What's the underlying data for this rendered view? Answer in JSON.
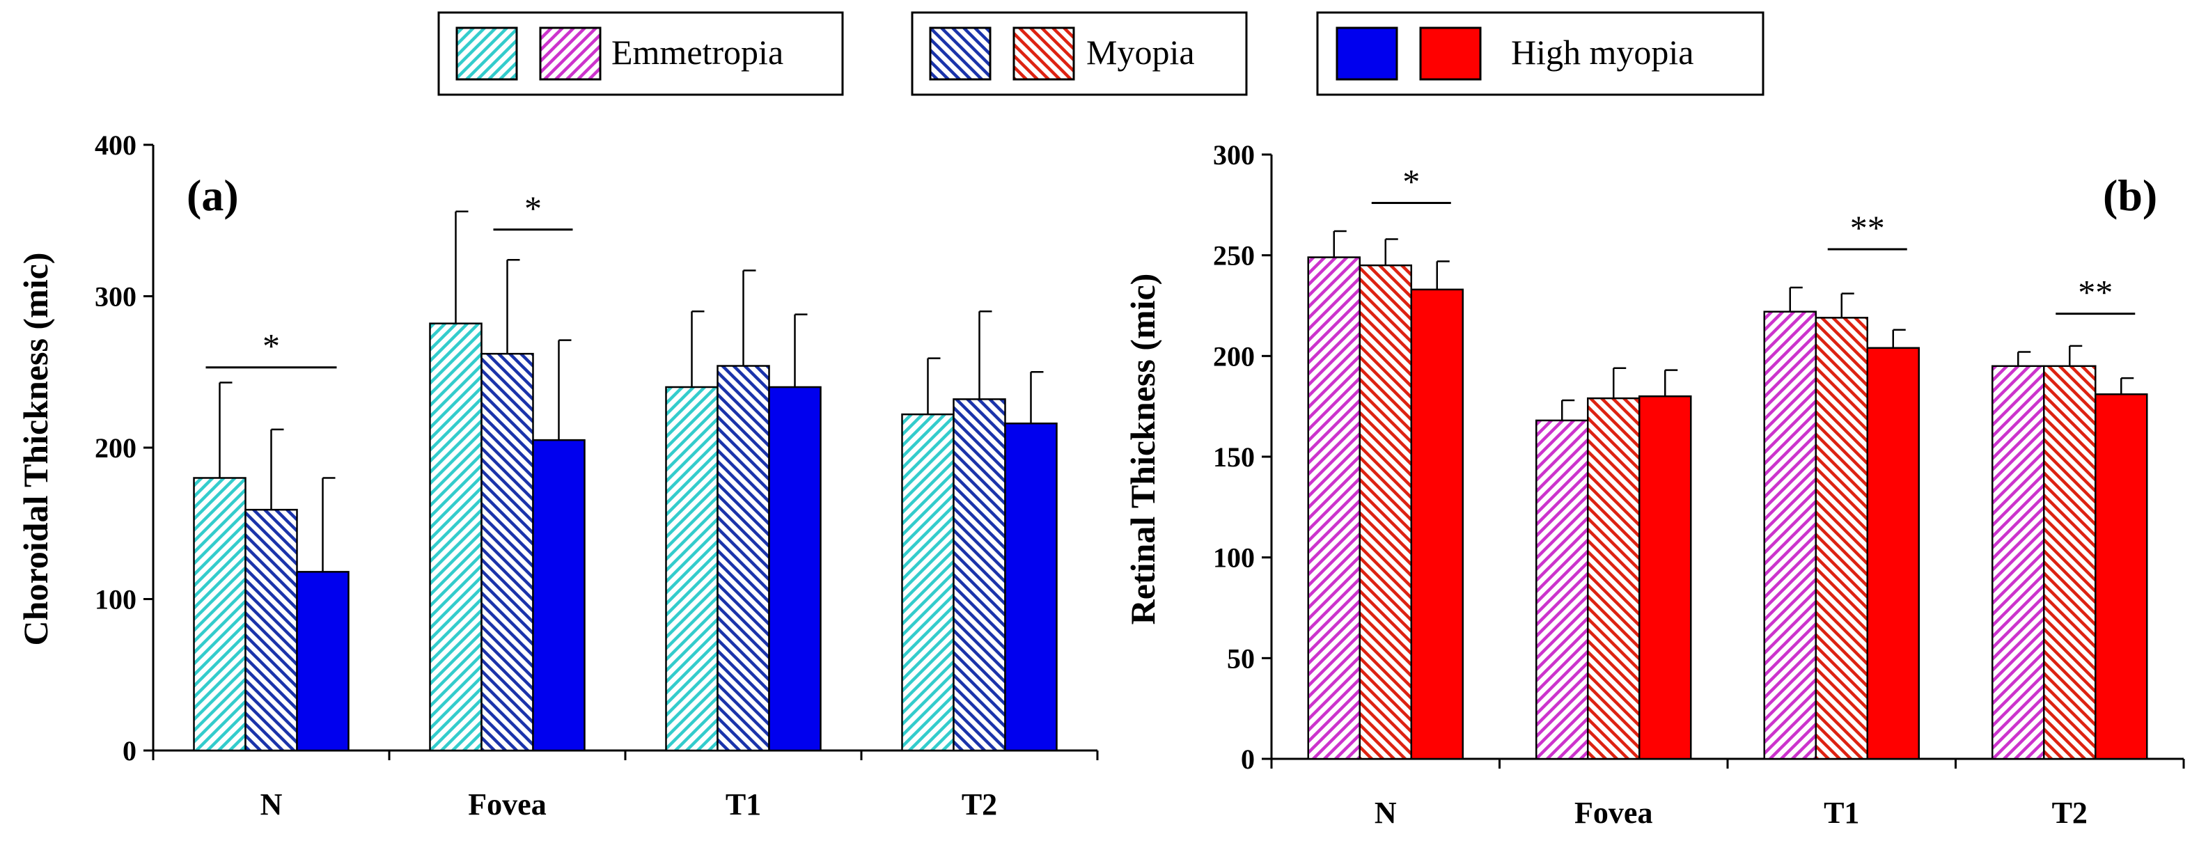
{
  "legend": {
    "groups": [
      {
        "label": "Emmetropia",
        "choroid_color": "#33cccc",
        "retina_color": "#cc33cc",
        "style": "hatch-forward"
      },
      {
        "label": "Myopia",
        "choroid_color": "#1a33aa",
        "retina_color": "#dd2211",
        "style": "hatch-back"
      },
      {
        "label": "High myopia",
        "choroid_color": "#0000ee",
        "retina_color": "#ff0000",
        "style": "solid"
      }
    ]
  },
  "chart_data": [
    {
      "type": "bar",
      "panel_label": "(a)",
      "ylabel": "Choroidal Thickness (mic)",
      "xlabel": "",
      "ylim": [
        0,
        400
      ],
      "yticks": [
        0,
        100,
        200,
        300,
        400
      ],
      "categories": [
        "N",
        "Fovea",
        "T1",
        "T2"
      ],
      "series": [
        {
          "name": "Emmetropia",
          "values": [
            180,
            282,
            240,
            222
          ],
          "error": [
            63,
            74,
            50,
            37
          ]
        },
        {
          "name": "Myopia",
          "values": [
            159,
            262,
            254,
            232
          ],
          "error": [
            53,
            62,
            63,
            58
          ]
        },
        {
          "name": "High myopia",
          "values": [
            118,
            205,
            240,
            216
          ],
          "error": [
            62,
            66,
            48,
            34
          ]
        }
      ],
      "significance": [
        {
          "category": "N",
          "between": [
            "Emmetropia",
            "High myopia"
          ],
          "mark": "*",
          "level": 253
        },
        {
          "category": "Fovea",
          "between": [
            "Myopia",
            "High myopia"
          ],
          "mark": "*",
          "level": 344
        }
      ]
    },
    {
      "type": "bar",
      "panel_label": "(b)",
      "ylabel": "Retinal Thickness (mic)",
      "xlabel": "",
      "ylim": [
        0,
        300
      ],
      "yticks": [
        0,
        50,
        100,
        150,
        200,
        250,
        300
      ],
      "categories": [
        "N",
        "Fovea",
        "T1",
        "T2"
      ],
      "series": [
        {
          "name": "Emmetropia",
          "values": [
            249,
            168,
            222,
            195
          ],
          "error": [
            13,
            10,
            12,
            7
          ]
        },
        {
          "name": "Myopia",
          "values": [
            245,
            179,
            219,
            195
          ],
          "error": [
            13,
            15,
            12,
            10
          ]
        },
        {
          "name": "High myopia",
          "values": [
            233,
            180,
            204,
            181
          ],
          "error": [
            14,
            13,
            9,
            8
          ]
        }
      ],
      "significance": [
        {
          "category": "N",
          "between": [
            "Myopia",
            "High myopia"
          ],
          "mark": "*",
          "level": 276
        },
        {
          "category": "T1",
          "between": [
            "Myopia",
            "High myopia"
          ],
          "mark": "**",
          "level": 253
        },
        {
          "category": "T2",
          "between": [
            "Myopia",
            "High myopia"
          ],
          "mark": "**",
          "level": 221
        }
      ]
    }
  ]
}
